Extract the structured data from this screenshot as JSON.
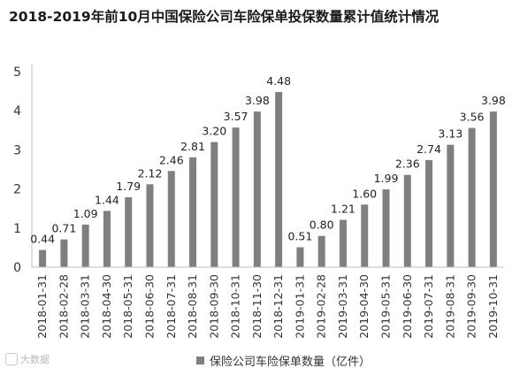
{
  "title": "2018-2019年前10月中国保险公司车险保单投保数量累计值统计情况",
  "source": "大数据",
  "chart_data": {
    "type": "bar",
    "categories": [
      "2018-01-31",
      "2018-02-28",
      "2018-03-31",
      "2018-04-30",
      "2018-05-31",
      "2018-06-30",
      "2018-07-31",
      "2018-08-31",
      "2018-09-30",
      "2018-10-31",
      "2018-11-30",
      "2018-12-31",
      "2019-01-31",
      "2019-02-28",
      "2019-03-31",
      "2019-04-30",
      "2019-05-31",
      "2019-06-30",
      "2019-07-31",
      "2019-08-31",
      "2019-09-30",
      "2019-10-31"
    ],
    "series": [
      {
        "name": "保险公司车险保单数量（亿件）",
        "values": [
          0.44,
          0.71,
          1.09,
          1.44,
          1.79,
          2.12,
          2.46,
          2.81,
          3.2,
          3.57,
          3.98,
          4.48,
          0.51,
          0.8,
          1.21,
          1.6,
          1.99,
          2.36,
          2.74,
          3.13,
          3.56,
          3.98
        ]
      }
    ],
    "data_labels": [
      "0.44",
      "0.71",
      "1.09",
      "1.44",
      "1.79",
      "2.12",
      "2.46",
      "2.81",
      "3.20",
      "3.57",
      "3.98",
      "4.48",
      "0.51",
      "0.80",
      "1.21",
      "1.60",
      "1.99",
      "2.36",
      "2.74",
      "3.13",
      "3.56",
      "3.98"
    ],
    "ylim": [
      0,
      5
    ],
    "yticks": [
      "0",
      "1",
      "2",
      "3",
      "4",
      "5"
    ],
    "grid": false,
    "legend_position": "bottom",
    "bar_color": "#7f7f7f"
  }
}
